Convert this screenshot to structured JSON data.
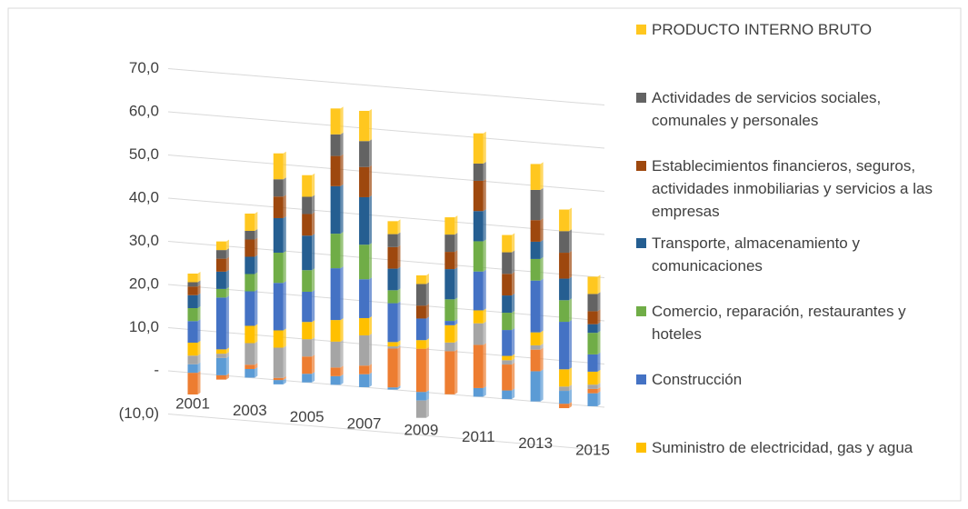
{
  "chart_data": {
    "type": "bar3d_stacked",
    "categories": [
      "2001",
      null,
      "2003",
      null,
      "2005",
      null,
      "2007",
      null,
      "2009",
      null,
      "2011",
      null,
      "2013",
      null,
      "2015"
    ],
    "ylim": [
      -10,
      70
    ],
    "yticks": [
      {
        "value": -10,
        "label": "(10,0)"
      },
      {
        "value": 0,
        "label": "-"
      },
      {
        "value": 10,
        "label": "10,0"
      },
      {
        "value": 20,
        "label": "20,0"
      },
      {
        "value": 30,
        "label": "30,0"
      },
      {
        "value": 40,
        "label": "40,0"
      },
      {
        "value": 50,
        "label": "50,0"
      },
      {
        "value": 60,
        "label": "60,0"
      },
      {
        "value": 70,
        "label": "70,0"
      }
    ],
    "grid": true,
    "series": [
      {
        "color": "#5b9bd5",
        "values": [
          2,
          4,
          2,
          -1,
          2,
          2,
          3,
          0.5,
          -2,
          0,
          2,
          2,
          7,
          3,
          3
        ]
      },
      {
        "color": "#ed7d31",
        "values": [
          -5,
          -1,
          1,
          0.5,
          4,
          2,
          2,
          9,
          10,
          10,
          10,
          6,
          5,
          -1,
          1
        ]
      },
      {
        "color": "#a5a5a5",
        "values": [
          2,
          1,
          5,
          7,
          4,
          6,
          7,
          0.5,
          -4,
          2,
          5,
          1,
          1,
          1,
          1
        ]
      },
      {
        "name": "Suministro de electricidad, gas y agua",
        "color": "#ffc000",
        "values": [
          3,
          1,
          4,
          4,
          4,
          5,
          4,
          1,
          2,
          4,
          3,
          1,
          3,
          4,
          3
        ]
      },
      {
        "name": "Construcción",
        "color": "#4472c4",
        "values": [
          5,
          12,
          8,
          11,
          7,
          12,
          9,
          9,
          5,
          1,
          9,
          6,
          12,
          11,
          4
        ]
      },
      {
        "name": "Comercio, reparación, restaurantes y hoteles",
        "color": "#70ad47",
        "values": [
          3,
          2,
          4,
          7,
          5,
          8,
          8,
          3,
          0,
          5,
          7,
          4,
          5,
          5,
          5
        ]
      },
      {
        "name": "Transporte, almacenamiento y comunicaciones",
        "color": "#255e91",
        "values": [
          3,
          4,
          4,
          8,
          8,
          11,
          11,
          5,
          0,
          7,
          7,
          4,
          4,
          5,
          2
        ]
      },
      {
        "name": "Establecimientos financieros, seguros, actividades inmobiliarias y servicios a las empresas",
        "color": "#9e480e",
        "values": [
          2,
          3,
          4,
          5,
          5,
          7,
          7,
          5,
          3,
          4,
          7,
          5,
          5,
          6,
          3
        ]
      },
      {
        "name": "Actividades de servicios sociales, comunales y personales",
        "color": "#636363",
        "values": [
          1,
          2,
          2,
          4,
          4,
          5,
          6,
          3,
          5,
          4,
          4,
          5,
          7,
          5,
          4
        ]
      },
      {
        "name": "PRODUCTO INTERNO BRUTO",
        "color": "#ffc71f",
        "values": [
          2,
          2,
          4,
          6,
          5,
          6,
          7,
          3,
          2,
          4,
          7,
          4,
          6,
          5,
          4
        ]
      }
    ]
  }
}
